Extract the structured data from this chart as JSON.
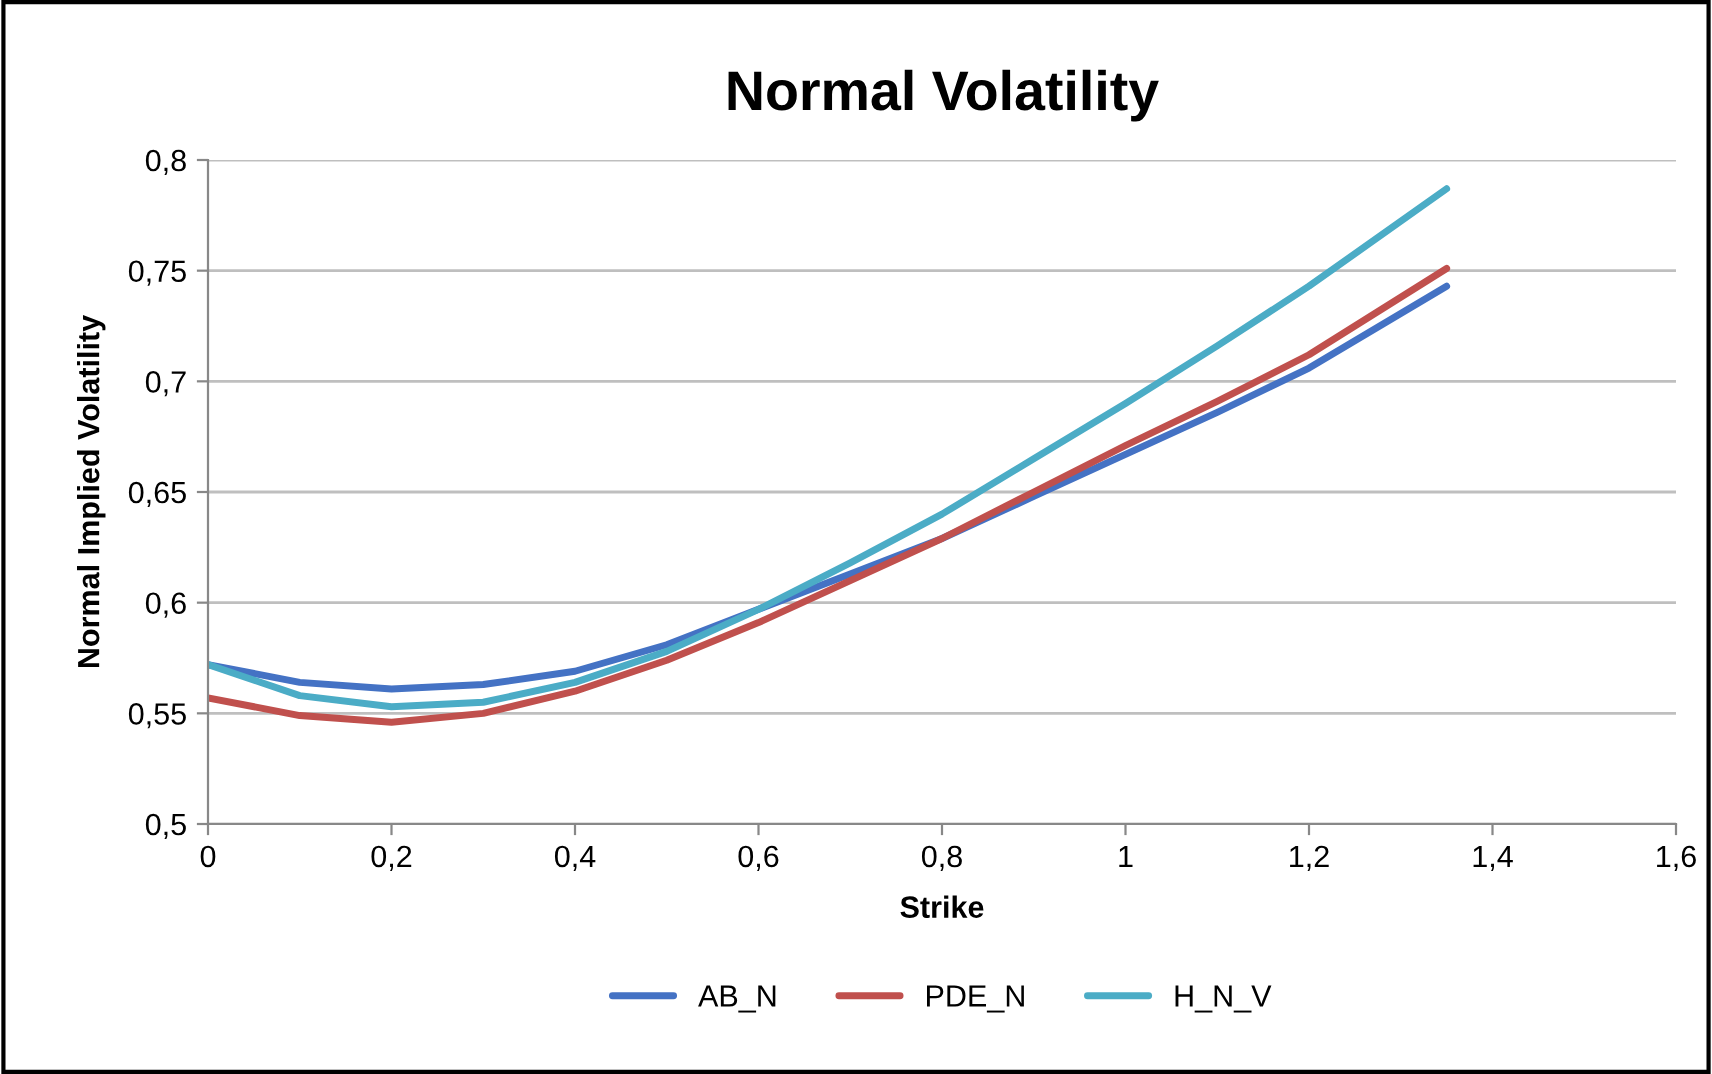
{
  "chart_data": {
    "type": "line",
    "title": "Normal Volatility",
    "xlabel": "Strike",
    "ylabel": "Normal Implied Volatility",
    "x": [
      0,
      0.1,
      0.2,
      0.3,
      0.4,
      0.5,
      0.6,
      0.7,
      0.8,
      0.9,
      1.0,
      1.1,
      1.2,
      1.35
    ],
    "series": [
      {
        "name": "AB_N",
        "color": "#4472c4",
        "values": [
          0.572,
          0.564,
          0.561,
          0.563,
          0.569,
          0.581,
          0.597,
          0.613,
          0.629,
          0.648,
          0.667,
          0.686,
          0.706,
          0.743
        ]
      },
      {
        "name": "PDE_N",
        "color": "#c0504d",
        "values": [
          0.557,
          0.549,
          0.546,
          0.55,
          0.56,
          0.574,
          0.591,
          0.61,
          0.629,
          0.65,
          0.671,
          0.691,
          0.712,
          0.751
        ]
      },
      {
        "name": "H_N_V",
        "color": "#4bacc6",
        "values": [
          0.572,
          0.558,
          0.553,
          0.555,
          0.564,
          0.578,
          0.597,
          0.618,
          0.64,
          0.665,
          0.69,
          0.716,
          0.743,
          0.787
        ]
      }
    ],
    "xlim": [
      0,
      1.6
    ],
    "ylim": [
      0.5,
      0.8
    ],
    "xticks": [
      0,
      {
        "value": 0.2,
        "label": "0,2"
      },
      {
        "value": 0.4,
        "label": "0,4"
      },
      {
        "value": 0.6,
        "label": "0,6"
      },
      {
        "value": 0.8,
        "label": "0,8"
      },
      1,
      {
        "value": 1.2,
        "label": "1,2"
      },
      {
        "value": 1.4,
        "label": "1,4"
      },
      {
        "value": 1.6,
        "label": "1,6"
      }
    ],
    "yticks": [
      {
        "value": 0.5,
        "label": "0,5"
      },
      {
        "value": 0.55,
        "label": "0,55"
      },
      {
        "value": 0.6,
        "label": "0,6"
      },
      {
        "value": 0.65,
        "label": "0,65"
      },
      {
        "value": 0.7,
        "label": "0,7"
      },
      {
        "value": 0.75,
        "label": "0,75"
      },
      {
        "value": 0.8,
        "label": "0,8"
      }
    ],
    "grid": "y",
    "legend": "bottom",
    "marker": "none",
    "line_style": "solid"
  }
}
